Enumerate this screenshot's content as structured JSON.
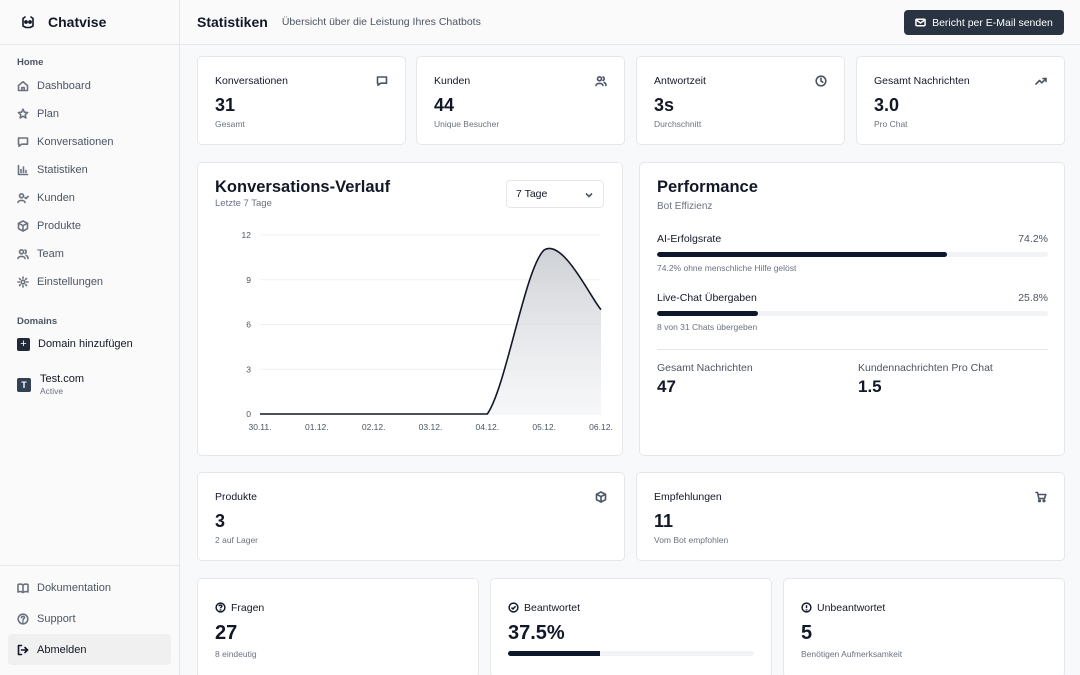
{
  "app": {
    "name": "Chatvise",
    "icon": "robot-icon"
  },
  "sidebar": {
    "section_home": "Home",
    "items": [
      {
        "label": "Dashboard",
        "icon": "home-icon"
      },
      {
        "label": "Plan",
        "icon": "star-icon"
      },
      {
        "label": "Konversationen",
        "icon": "message-icon"
      },
      {
        "label": "Statistiken",
        "icon": "bar-chart-icon"
      },
      {
        "label": "Kunden",
        "icon": "user-check-icon"
      },
      {
        "label": "Produkte",
        "icon": "package-icon"
      },
      {
        "label": "Team",
        "icon": "users-icon"
      },
      {
        "label": "Einstellungen",
        "icon": "gear-icon"
      }
    ],
    "section_domains": "Domains",
    "add_domain": "Domain hinzufügen",
    "domain": {
      "initial": "T",
      "name": "Test.com",
      "status": "Active"
    },
    "bottom": [
      {
        "label": "Dokumentation",
        "icon": "book-icon"
      },
      {
        "label": "Support",
        "icon": "help-icon"
      },
      {
        "label": "Abmelden",
        "icon": "logout-icon"
      }
    ]
  },
  "header": {
    "title": "Statistiken",
    "subtitle": "Übersicht über die Leistung Ihres Chatbots",
    "email_button": "Bericht per E-Mail senden"
  },
  "kpis": [
    {
      "label": "Konversationen",
      "value": "31",
      "sub": "Gesamt",
      "icon": "message-icon"
    },
    {
      "label": "Kunden",
      "value": "44",
      "sub": "Unique Besucher",
      "icon": "users-icon"
    },
    {
      "label": "Antwortzeit",
      "value": "3s",
      "sub": "Durchschnitt",
      "icon": "clock-icon"
    },
    {
      "label": "Gesamt Nachrichten",
      "value": "3.0",
      "sub": "Pro Chat",
      "icon": "trending-up-icon"
    }
  ],
  "chart_card": {
    "title": "Konversations-Verlauf",
    "subtitle": "Letzte 7 Tage",
    "range_select": "7 Tage"
  },
  "chart_data": {
    "type": "area",
    "title": "Konversations-Verlauf",
    "subtitle": "Letzte 7 Tage",
    "categories": [
      "30.11.",
      "01.12.",
      "02.12.",
      "03.12.",
      "04.12.",
      "05.12.",
      "06.12."
    ],
    "values": [
      0,
      0,
      0,
      0,
      0,
      11,
      7
    ],
    "yticks": [
      0,
      3,
      6,
      9,
      12
    ],
    "ylim": [
      0,
      12
    ],
    "grid": true,
    "xlabel": "",
    "ylabel": ""
  },
  "performance": {
    "title": "Performance",
    "subtitle": "Bot Effizienz",
    "metrics": [
      {
        "label": "AI-Erfolgsrate",
        "value": "74.2%",
        "percent": 74.2,
        "note": "74.2% ohne menschliche Hilfe gelöst"
      },
      {
        "label": "Live-Chat Übergaben",
        "value": "25.8%",
        "percent": 25.8,
        "note": "8 von 31 Chats übergeben"
      }
    ],
    "stats": [
      {
        "label": "Gesamt Nachrichten",
        "value": "47"
      },
      {
        "label": "Kundennachrichten Pro Chat",
        "value": "1.5"
      }
    ]
  },
  "products": {
    "label": "Produkte",
    "value": "3",
    "sub": "2 auf Lager",
    "icon": "package-icon"
  },
  "recommendations": {
    "label": "Empfehlungen",
    "value": "11",
    "sub": "Vom Bot empfohlen",
    "icon": "cart-icon"
  },
  "questions": [
    {
      "label": "Fragen",
      "value": "27",
      "sub": "8 eindeutig",
      "icon": "help-icon"
    },
    {
      "label": "Beantwortet",
      "value": "37.5%",
      "percent": 37.5,
      "icon": "check-circle-icon"
    },
    {
      "label": "Unbeantwortet",
      "value": "5",
      "sub": "Benötigen Aufmerksamkeit",
      "icon": "alert-circle-icon"
    }
  ]
}
